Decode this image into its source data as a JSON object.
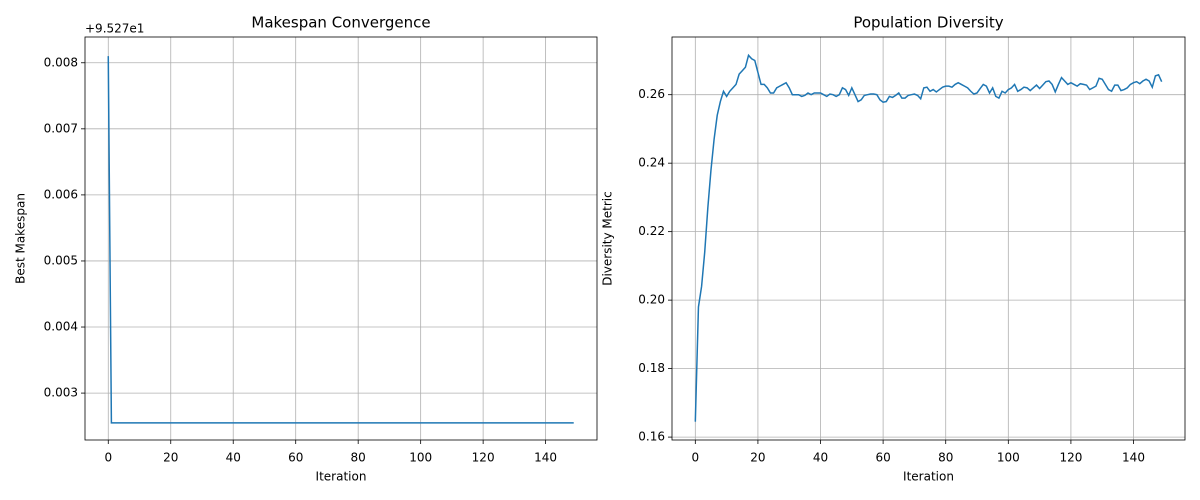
{
  "chart_data": [
    {
      "type": "line",
      "title": "Makespan Convergence",
      "xlabel": "Iteration",
      "ylabel": "Best Makespan",
      "annotation": "+9.527e1",
      "color": "#1f77b4",
      "grid": true,
      "xlim": [
        -7.45,
        156.45
      ],
      "xticks": [
        0,
        20,
        40,
        60,
        80,
        100,
        120,
        140
      ],
      "ylim": [
        0.00229,
        0.00839
      ],
      "yticks": [
        0.003,
        0.004,
        0.005,
        0.006,
        0.007,
        0.008
      ],
      "x": [
        0,
        1,
        2,
        3,
        4,
        5,
        6,
        7,
        8,
        9,
        10,
        11,
        12,
        13,
        14,
        15,
        16,
        17,
        18,
        19,
        20,
        21,
        22,
        23,
        24,
        25,
        26,
        27,
        28,
        29,
        30,
        31,
        32,
        33,
        34,
        35,
        36,
        37,
        38,
        39,
        40,
        41,
        42,
        43,
        44,
        45,
        46,
        47,
        48,
        49,
        50,
        51,
        52,
        53,
        54,
        55,
        56,
        57,
        58,
        59,
        60,
        61,
        62,
        63,
        64,
        65,
        66,
        67,
        68,
        69,
        70,
        71,
        72,
        73,
        74,
        75,
        76,
        77,
        78,
        79,
        80,
        81,
        82,
        83,
        84,
        85,
        86,
        87,
        88,
        89,
        90,
        91,
        92,
        93,
        94,
        95,
        96,
        97,
        98,
        99,
        100,
        101,
        102,
        103,
        104,
        105,
        106,
        107,
        108,
        109,
        110,
        111,
        112,
        113,
        114,
        115,
        116,
        117,
        118,
        119,
        120,
        121,
        122,
        123,
        124,
        125,
        126,
        127,
        128,
        129,
        130,
        131,
        132,
        133,
        134,
        135,
        136,
        137,
        138,
        139,
        140,
        141,
        142,
        143,
        144,
        145,
        146,
        147,
        148,
        149
      ],
      "values": [
        0.0081,
        0.00255,
        0.00255,
        0.00255,
        0.00255,
        0.00255,
        0.00255,
        0.00255,
        0.00255,
        0.00255,
        0.00255,
        0.00255,
        0.00255,
        0.00255,
        0.00255,
        0.00255,
        0.00255,
        0.00255,
        0.00255,
        0.00255,
        0.00255,
        0.00255,
        0.00255,
        0.00255,
        0.00255,
        0.00255,
        0.00255,
        0.00255,
        0.00255,
        0.00255,
        0.00255,
        0.00255,
        0.00255,
        0.00255,
        0.00255,
        0.00255,
        0.00255,
        0.00255,
        0.00255,
        0.00255,
        0.00255,
        0.00255,
        0.00255,
        0.00255,
        0.00255,
        0.00255,
        0.00255,
        0.00255,
        0.00255,
        0.00255,
        0.00255,
        0.00255,
        0.00255,
        0.00255,
        0.00255,
        0.00255,
        0.00255,
        0.00255,
        0.00255,
        0.00255,
        0.00255,
        0.00255,
        0.00255,
        0.00255,
        0.00255,
        0.00255,
        0.00255,
        0.00255,
        0.00255,
        0.00255,
        0.00255,
        0.00255,
        0.00255,
        0.00255,
        0.00255,
        0.00255,
        0.00255,
        0.00255,
        0.00255,
        0.00255,
        0.00255,
        0.00255,
        0.00255,
        0.00255,
        0.00255,
        0.00255,
        0.00255,
        0.00255,
        0.00255,
        0.00255,
        0.00255,
        0.00255,
        0.00255,
        0.00255,
        0.00255,
        0.00255,
        0.00255,
        0.00255,
        0.00255,
        0.00255,
        0.00255,
        0.00255,
        0.00255,
        0.00255,
        0.00255,
        0.00255,
        0.00255,
        0.00255,
        0.00255,
        0.00255,
        0.00255,
        0.00255,
        0.00255,
        0.00255,
        0.00255,
        0.00255,
        0.00255,
        0.00255,
        0.00255,
        0.00255,
        0.00255,
        0.00255,
        0.00255,
        0.00255,
        0.00255,
        0.00255,
        0.00255,
        0.00255,
        0.00255,
        0.00255,
        0.00255,
        0.00255,
        0.00255,
        0.00255,
        0.00255,
        0.00255,
        0.00255,
        0.00255,
        0.00255,
        0.00255,
        0.00255,
        0.00255,
        0.00255,
        0.00255,
        0.00255,
        0.00255,
        0.00255,
        0.00255,
        0.00255,
        0.00255
      ]
    },
    {
      "type": "line",
      "title": "Population Diversity",
      "xlabel": "Iteration",
      "ylabel": "Diversity Metric",
      "color": "#1f77b4",
      "grid": true,
      "xlim": [
        -7.45,
        156.45
      ],
      "xticks": [
        0,
        20,
        40,
        60,
        80,
        100,
        120,
        140
      ],
      "ylim": [
        0.15915,
        0.27685
      ],
      "yticks": [
        0.16,
        0.18,
        {
          "value": 0.2,
          "label": "0.20"
        },
        0.22,
        0.24,
        0.26
      ],
      "x": [
        0,
        1,
        2,
        3,
        4,
        5,
        6,
        7,
        8,
        9,
        10,
        11,
        12,
        13,
        14,
        15,
        16,
        17,
        18,
        19,
        20,
        21,
        22,
        23,
        24,
        25,
        26,
        27,
        28,
        29,
        30,
        31,
        32,
        33,
        34,
        35,
        36,
        37,
        38,
        39,
        40,
        41,
        42,
        43,
        44,
        45,
        46,
        47,
        48,
        49,
        50,
        51,
        52,
        53,
        54,
        55,
        56,
        57,
        58,
        59,
        60,
        61,
        62,
        63,
        64,
        65,
        66,
        67,
        68,
        69,
        70,
        71,
        72,
        73,
        74,
        75,
        76,
        77,
        78,
        79,
        80,
        81,
        82,
        83,
        84,
        85,
        86,
        87,
        88,
        89,
        90,
        91,
        92,
        93,
        94,
        95,
        96,
        97,
        98,
        99,
        100,
        101,
        102,
        103,
        104,
        105,
        106,
        107,
        108,
        109,
        110,
        111,
        112,
        113,
        114,
        115,
        116,
        117,
        118,
        119,
        120,
        121,
        122,
        123,
        124,
        125,
        126,
        127,
        128,
        129,
        130,
        131,
        132,
        133,
        134,
        135,
        136,
        137,
        138,
        139,
        140,
        141,
        142,
        143,
        144,
        145,
        146,
        147,
        148,
        149
      ],
      "values": [
        0.1645,
        0.198,
        0.204,
        0.214,
        0.227,
        0.238,
        0.247,
        0.254,
        0.258,
        0.261,
        0.2595,
        0.261,
        0.262,
        0.263,
        0.266,
        0.267,
        0.268,
        0.2715,
        0.2705,
        0.27,
        0.2665,
        0.263,
        0.263,
        0.262,
        0.2605,
        0.2605,
        0.262,
        0.2625,
        0.263,
        0.2635,
        0.262,
        0.26,
        0.26,
        0.26,
        0.2595,
        0.2598,
        0.2605,
        0.26,
        0.2605,
        0.2605,
        0.2605,
        0.26,
        0.2595,
        0.2602,
        0.26,
        0.2595,
        0.26,
        0.262,
        0.2615,
        0.2598,
        0.262,
        0.26,
        0.258,
        0.2585,
        0.2598,
        0.26,
        0.2602,
        0.2602,
        0.26,
        0.2585,
        0.2578,
        0.258,
        0.2595,
        0.2592,
        0.2598,
        0.2605,
        0.259,
        0.259,
        0.2598,
        0.26,
        0.2602,
        0.2598,
        0.2588,
        0.262,
        0.2622,
        0.261,
        0.2615,
        0.2608,
        0.2615,
        0.2622,
        0.2625,
        0.2625,
        0.2622,
        0.263,
        0.2635,
        0.263,
        0.2625,
        0.262,
        0.261,
        0.2602,
        0.2605,
        0.2618,
        0.263,
        0.2625,
        0.2605,
        0.262,
        0.2595,
        0.259,
        0.261,
        0.2605,
        0.2615,
        0.262,
        0.263,
        0.261,
        0.2615,
        0.2622,
        0.262,
        0.2612,
        0.262,
        0.2628,
        0.2618,
        0.2628,
        0.2638,
        0.264,
        0.263,
        0.2608,
        0.263,
        0.265,
        0.264,
        0.263,
        0.2635,
        0.263,
        0.2625,
        0.2632,
        0.263,
        0.2628,
        0.2615,
        0.262,
        0.2625,
        0.2648,
        0.2645,
        0.263,
        0.2615,
        0.261,
        0.2628,
        0.2628,
        0.2612,
        0.2615,
        0.262,
        0.263,
        0.2635,
        0.2638,
        0.2632,
        0.264,
        0.2645,
        0.264,
        0.2622,
        0.2655,
        0.2658,
        0.2638
      ]
    }
  ]
}
